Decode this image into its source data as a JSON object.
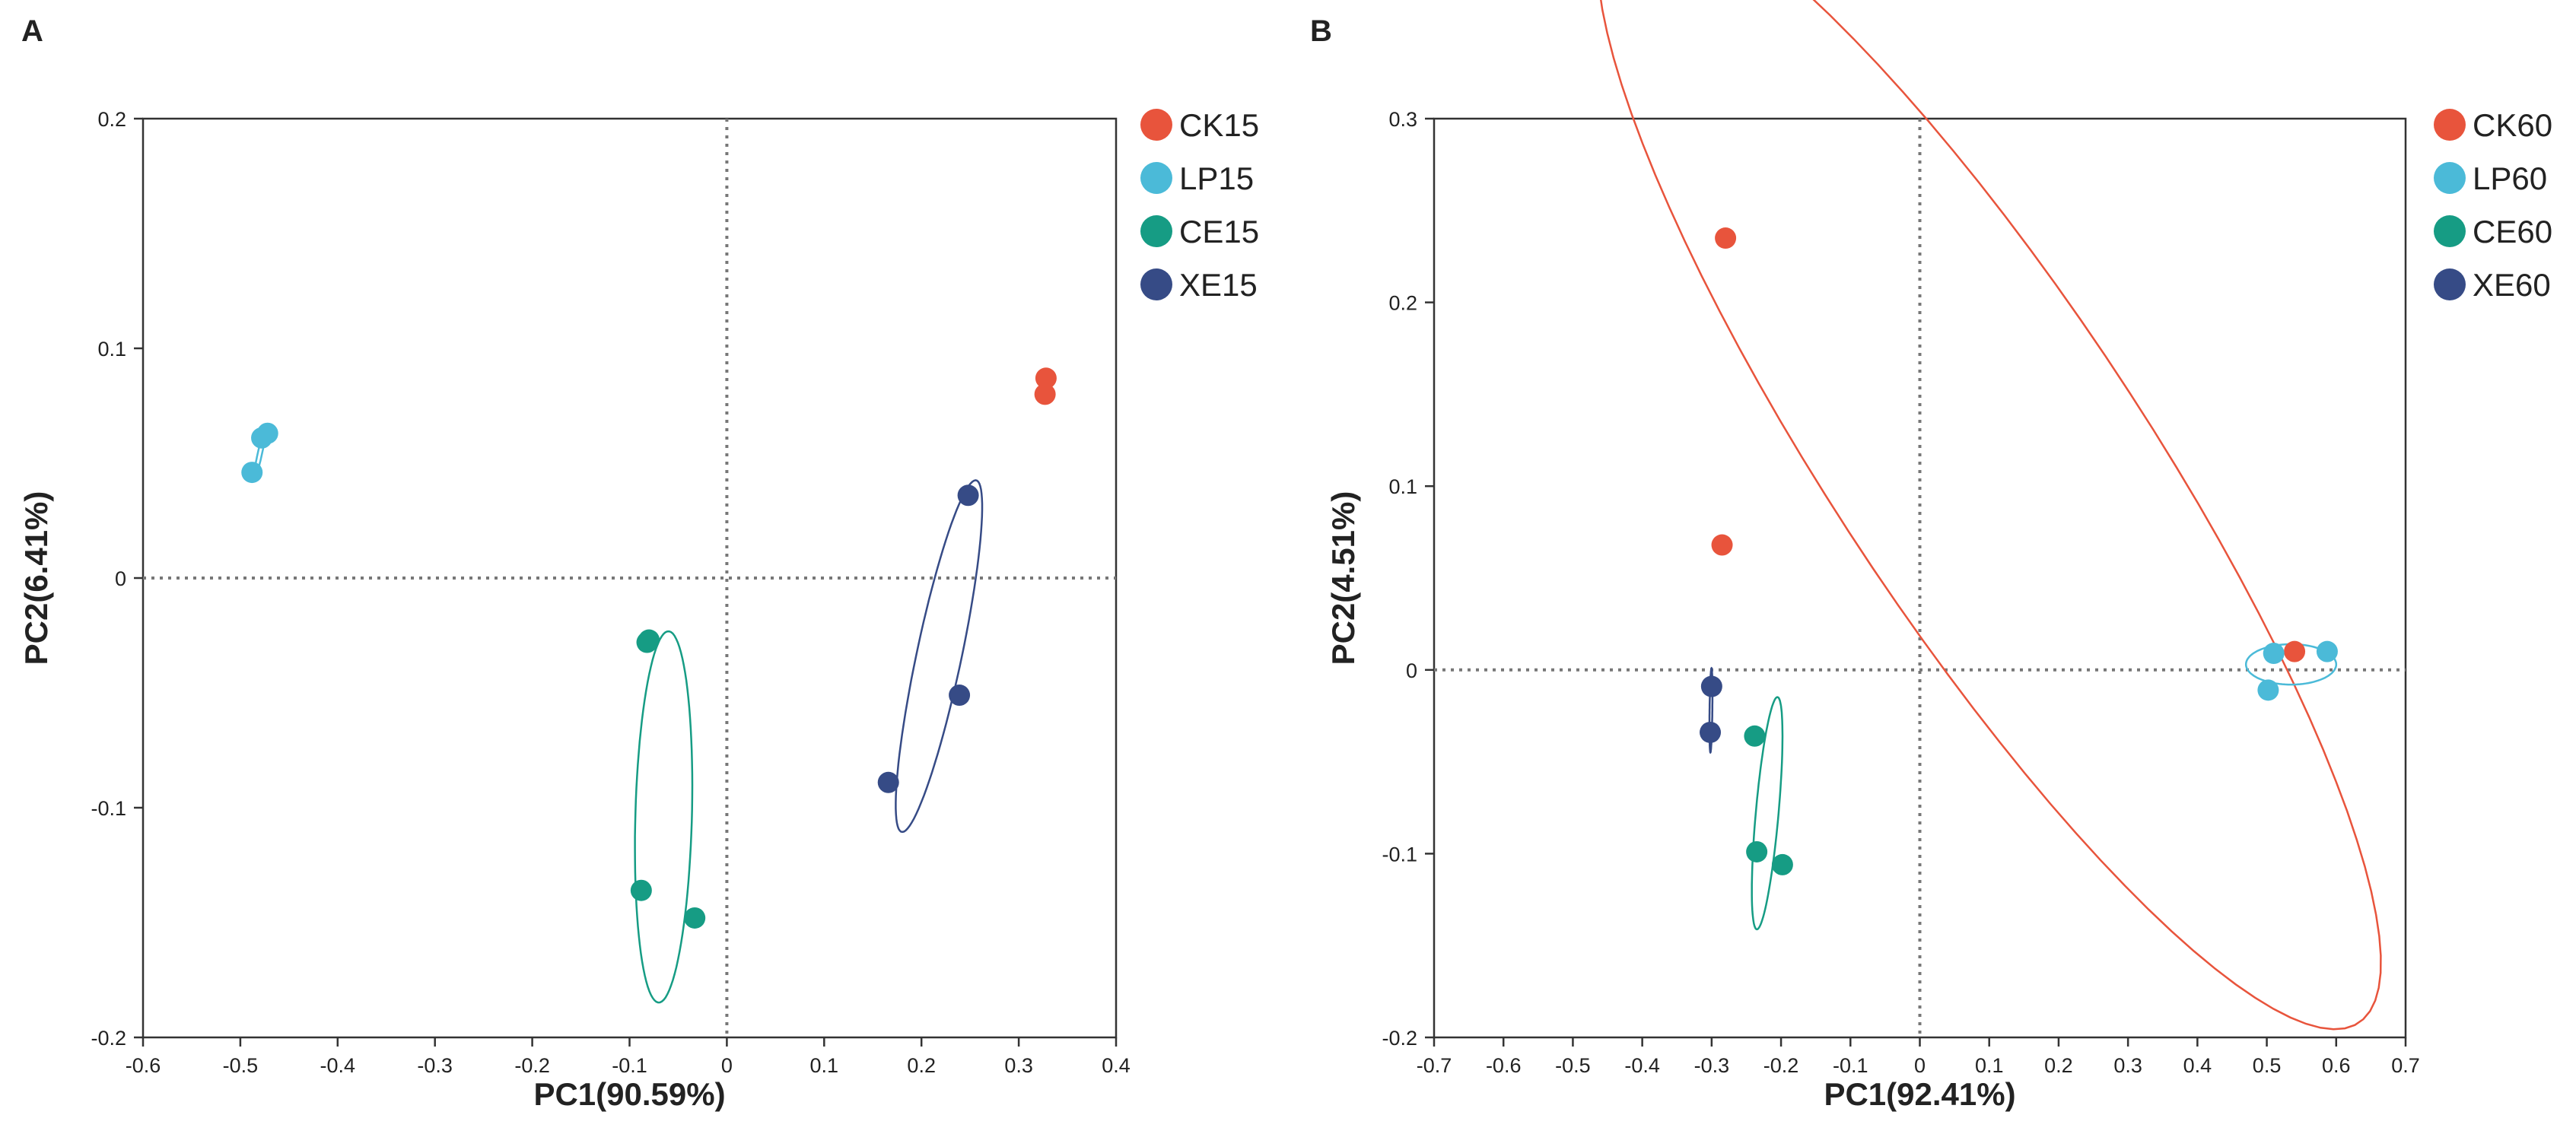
{
  "chart_data": [
    {
      "type": "scatter",
      "panel_label": "A",
      "xlabel": "PC1(90.59%)",
      "ylabel": "PC2(6.41%)",
      "xlim": [
        -0.6,
        0.4
      ],
      "ylim": [
        -0.2,
        0.2
      ],
      "xticks": [
        -0.6,
        -0.5,
        -0.4,
        -0.3,
        -0.2,
        -0.1,
        0,
        0.1,
        0.2,
        0.3,
        0.4
      ],
      "yticks": [
        -0.2,
        -0.1,
        0,
        0.1,
        0.2
      ],
      "xtick_labels": [
        "-0.6",
        "-0.5",
        "-0.4",
        "-0.3",
        "-0.2",
        "-0.1",
        "0",
        "0.1",
        "0.2",
        "0.3",
        "0.4"
      ],
      "ytick_labels": [
        "-0.2",
        "-0.1",
        "0",
        "0.1",
        "0.2"
      ],
      "grid": false,
      "reference_lines": {
        "x": 0,
        "y": 0,
        "style": "dotted"
      },
      "legend_position": "right",
      "series": [
        {
          "name": "CK15",
          "color": "#e8543c",
          "points": [
            [
              0.328,
              0.087
            ],
            [
              0.327,
              0.08
            ]
          ],
          "ellipse": null
        },
        {
          "name": "LP15",
          "color": "#4bbad8",
          "points": [
            [
              -0.488,
              0.046
            ],
            [
              -0.478,
              0.061
            ],
            [
              -0.472,
              0.063
            ]
          ],
          "ellipse": {
            "cx": -0.48,
            "cy": 0.054,
            "rx": 0.013,
            "ry": 0.002,
            "angle": 62
          }
        },
        {
          "name": "CE15",
          "color": "#169c84",
          "points": [
            [
              -0.08,
              -0.027
            ],
            [
              -0.082,
              -0.028
            ],
            [
              -0.088,
              -0.136
            ],
            [
              -0.033,
              -0.148
            ]
          ],
          "ellipse": {
            "cx": -0.065,
            "cy": -0.104,
            "rx": 0.081,
            "ry": 0.029,
            "angle": 86
          }
        },
        {
          "name": "XE15",
          "color": "#364b86",
          "points": [
            [
              0.248,
              0.036
            ],
            [
              0.239,
              -0.051
            ],
            [
              0.166,
              -0.089
            ]
          ],
          "ellipse": {
            "cx": 0.218,
            "cy": -0.034,
            "rx": 0.086,
            "ry": 0.021,
            "angle": 62
          }
        }
      ]
    },
    {
      "type": "scatter",
      "panel_label": "B",
      "xlabel": "PC1(92.41%)",
      "ylabel": "PC2(4.51%)",
      "xlim": [
        -0.7,
        0.7
      ],
      "ylim": [
        -0.2,
        0.3
      ],
      "xticks": [
        -0.7,
        -0.6,
        -0.5,
        -0.4,
        -0.3,
        -0.2,
        -0.1,
        0,
        0.1,
        0.2,
        0.3,
        0.4,
        0.5,
        0.6,
        0.7
      ],
      "yticks": [
        -0.2,
        -0.1,
        0,
        0.1,
        0.2,
        0.3
      ],
      "xtick_labels": [
        "-0.7",
        "-0.6",
        "-0.5",
        "-0.4",
        "-0.3",
        "-0.2",
        "-0.1",
        "0",
        "0.1",
        "0.2",
        "0.3",
        "0.4",
        "0.5",
        "0.6",
        "0.7"
      ],
      "ytick_labels": [
        "-0.2",
        "-0.1",
        "0",
        "0.1",
        "0.2",
        "0.3"
      ],
      "grid": false,
      "reference_lines": {
        "x": 0,
        "y": 0,
        "style": "dotted"
      },
      "legend_position": "right",
      "series": [
        {
          "name": "CK60",
          "color": "#e8543c",
          "points": [
            [
              -0.28,
              0.235
            ],
            [
              -0.285,
              0.068
            ],
            [
              0.54,
              0.01
            ]
          ],
          "ellipse": {
            "cx": 0.1,
            "cy": 0.113,
            "rx": 0.63,
            "ry": 0.13,
            "angle": -27
          }
        },
        {
          "name": "LP60",
          "color": "#4bbad8",
          "points": [
            [
              0.51,
              0.009
            ],
            [
              0.587,
              0.01
            ],
            [
              0.502,
              -0.011
            ]
          ],
          "ellipse": {
            "cx": 0.535,
            "cy": 0.003,
            "rx": 0.065,
            "ry": 0.011,
            "angle": 0
          }
        },
        {
          "name": "CE60",
          "color": "#169c84",
          "points": [
            [
              -0.238,
              -0.036
            ],
            [
              -0.235,
              -0.099
            ],
            [
              -0.198,
              -0.106
            ]
          ],
          "ellipse": {
            "cx": -0.22,
            "cy": -0.078,
            "rx": 0.065,
            "ry": 0.016,
            "angle": 76
          }
        },
        {
          "name": "XE60",
          "color": "#364b86",
          "points": [
            [
              -0.3,
              -0.009
            ],
            [
              -0.302,
              -0.034
            ]
          ],
          "ellipse": {
            "cx": -0.301,
            "cy": -0.022,
            "rx": 0.023,
            "ry": 0.002,
            "angle": 88
          }
        }
      ]
    }
  ]
}
